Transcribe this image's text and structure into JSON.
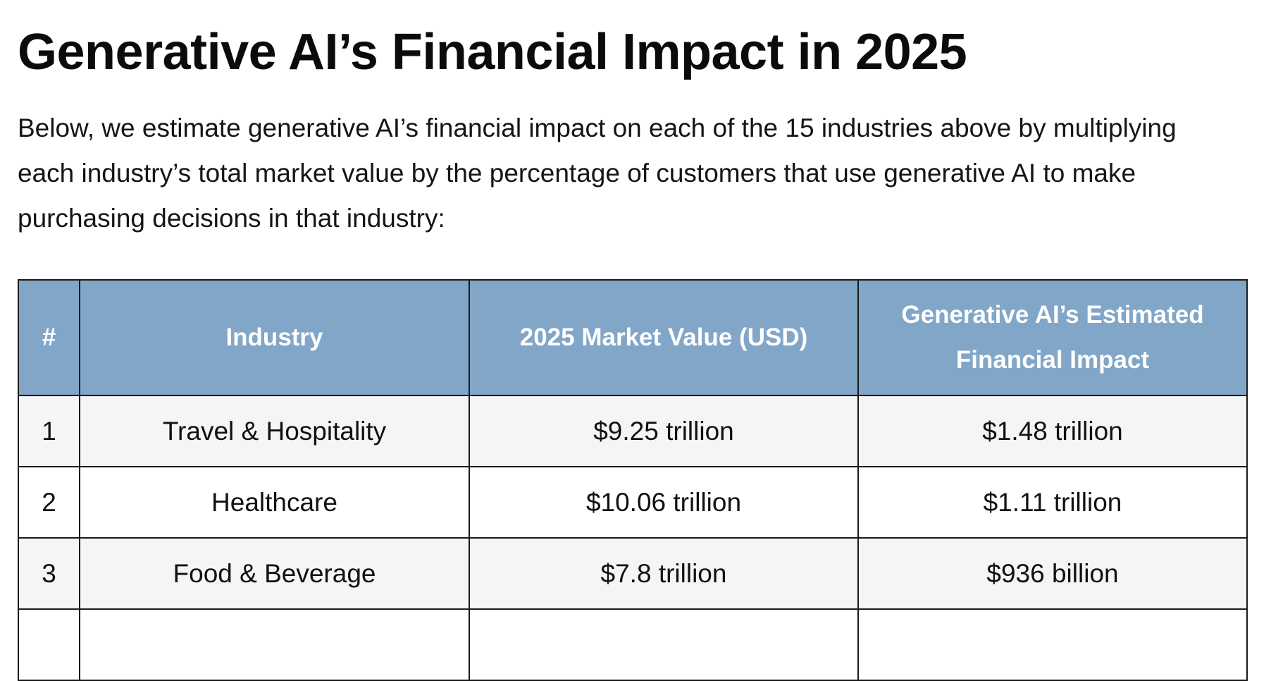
{
  "article": {
    "title": "Generative AI’s Financial Impact in 2025",
    "intro": "Below, we estimate generative AI’s financial impact on each of the 15 industries above by multiplying each industry’s total market value by the percentage of customers that use generative AI to make purchasing decisions in that industry:"
  },
  "table": {
    "headers": {
      "num": "#",
      "industry": "Industry",
      "market_value": "2025 Market Value (USD)",
      "impact": "Generative AI’s Estimated Financial Impact"
    },
    "rows": [
      {
        "num": "1",
        "industry": "Travel & Hospitality",
        "market_value": "$9.25 trillion",
        "impact": "$1.48 trillion"
      },
      {
        "num": "2",
        "industry": "Healthcare",
        "market_value": "$10.06 trillion",
        "impact": "$1.11 trillion"
      },
      {
        "num": "3",
        "industry": "Food & Beverage",
        "market_value": "$7.8 trillion",
        "impact": "$936 billion"
      },
      {
        "num": "",
        "industry": "",
        "market_value": "",
        "impact": ""
      }
    ]
  },
  "colors": {
    "header_bg": "#81a6c8",
    "header_text": "#ffffff",
    "row_alt_bg": "#f5f5f5",
    "border": "#1a1a1a"
  }
}
